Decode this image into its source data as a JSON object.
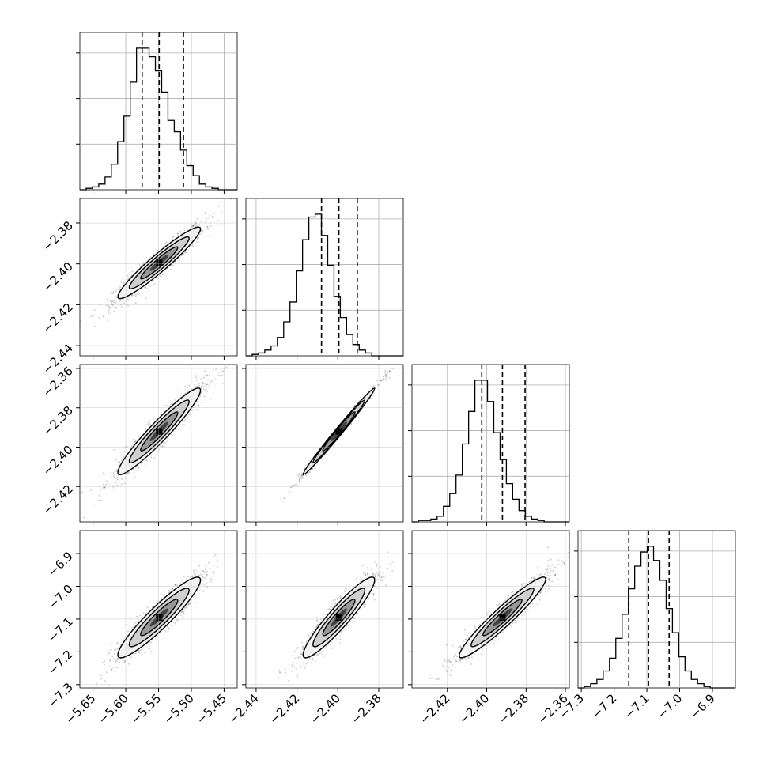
{
  "chart_data": {
    "type": "scatter",
    "n_params": 4,
    "grid": true,
    "params": [
      {
        "range": [
          -5.67,
          -5.43
        ],
        "ticks": [
          -5.65,
          -5.6,
          -5.55,
          -5.5,
          -5.45
        ],
        "tick_labels": [
          "−5.65",
          "−5.60",
          "−5.55",
          "−5.50",
          "−5.45"
        ],
        "quantiles": [
          -5.575,
          -5.549,
          -5.512
        ],
        "hist": [
          0,
          1,
          2,
          4,
          9,
          18,
          34,
          52,
          76,
          100,
          100,
          94,
          84,
          69,
          49,
          41,
          28,
          17,
          10,
          4,
          2,
          1,
          0,
          0,
          0
        ]
      },
      {
        "range": [
          -2.445,
          -2.368
        ],
        "ticks": [
          -2.44,
          -2.42,
          -2.4,
          -2.38
        ],
        "tick_labels": [
          "−2.44",
          "−2.42",
          "−2.40",
          "−2.38"
        ],
        "quantiles": [
          -2.408,
          -2.3995,
          -2.3905
        ],
        "hist": [
          0,
          1,
          2,
          4,
          7,
          13,
          24,
          38,
          60,
          82,
          98,
          100,
          85,
          64,
          42,
          27,
          15,
          8,
          4,
          2,
          0,
          0,
          0,
          0,
          0
        ]
      },
      {
        "range": [
          -2.438,
          -2.358
        ],
        "ticks": [
          -2.42,
          -2.4,
          -2.38,
          -2.36
        ],
        "tick_labels": [
          "−2.42",
          "−2.40",
          "−2.38",
          "−2.36"
        ],
        "quantiles": [
          -2.4025,
          -2.392,
          -2.3805
        ],
        "hist": [
          0,
          1,
          1,
          2,
          4,
          11,
          20,
          33,
          55,
          78,
          100,
          100,
          85,
          63,
          44,
          27,
          16,
          8,
          4,
          2,
          1,
          0,
          0,
          0,
          0
        ]
      },
      {
        "range": [
          -7.31,
          -6.83
        ],
        "ticks": [
          -7.3,
          -7.2,
          -7.1,
          -7.0,
          -6.9
        ],
        "tick_labels": [
          "−7.3",
          "−7.2",
          "−7.1",
          "−7.0",
          "−6.9"
        ],
        "quantiles": [
          -7.155,
          -7.095,
          -7.032
        ],
        "hist": [
          0,
          1,
          3,
          6,
          12,
          21,
          35,
          52,
          70,
          86,
          96,
          100,
          90,
          76,
          56,
          39,
          22,
          12,
          6,
          3,
          1,
          0,
          0,
          0,
          0
        ]
      }
    ]
  }
}
